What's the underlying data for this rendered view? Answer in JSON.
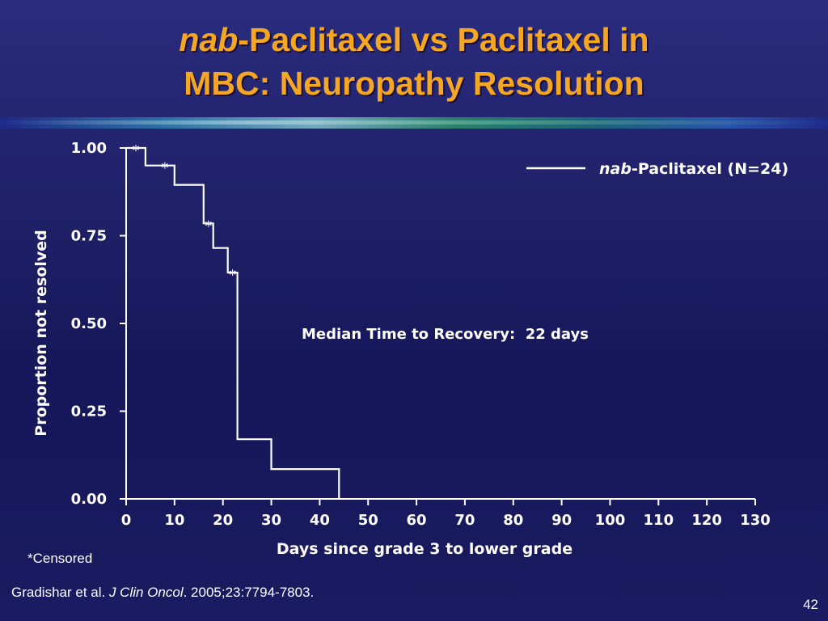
{
  "slide": {
    "title_italic": "nab",
    "title_line1_rest": "-Paclitaxel vs Paclitaxel in",
    "title_line2": "MBC: Neuropathy Resolution",
    "footnote": "*Censored",
    "citation_authors": "Gradishar et al. ",
    "citation_journal": "J Clin Oncol",
    "citation_rest": ". 2005;23:7794-7803.",
    "page_number": "42"
  },
  "chart_data": {
    "type": "line",
    "subtype": "kaplan-meier step",
    "xlabel": "Days since grade 3 to lower grade",
    "ylabel": "Proportion not resolved",
    "xlim": [
      0,
      130
    ],
    "ylim": [
      0,
      1
    ],
    "x_ticks": [
      0,
      10,
      20,
      30,
      40,
      50,
      60,
      70,
      80,
      90,
      100,
      110,
      120,
      130
    ],
    "y_ticks": [
      "0.00",
      "0.25",
      "0.50",
      "0.75",
      "1.00"
    ],
    "grid": false,
    "legend_position": "top-right",
    "legend": {
      "italic": "nab",
      "rest": "-Paclitaxel (N=24)"
    },
    "annotation": "Median Time to Recovery:  22 days",
    "line_color": "#ffffff",
    "series": [
      {
        "steps": [
          [
            0,
            1.0
          ],
          [
            4,
            1.0
          ],
          [
            4,
            0.95
          ],
          [
            10,
            0.95
          ],
          [
            10,
            0.895
          ],
          [
            16,
            0.895
          ],
          [
            16,
            0.785
          ],
          [
            18,
            0.785
          ],
          [
            18,
            0.715
          ],
          [
            21,
            0.715
          ],
          [
            21,
            0.645
          ],
          [
            23,
            0.645
          ],
          [
            23,
            0.17
          ],
          [
            30,
            0.17
          ],
          [
            30,
            0.085
          ],
          [
            44,
            0.085
          ],
          [
            44,
            0.0
          ]
        ],
        "censored": [
          [
            2,
            1.0
          ],
          [
            8,
            0.95
          ],
          [
            17,
            0.785
          ],
          [
            22,
            0.645
          ]
        ]
      }
    ]
  }
}
